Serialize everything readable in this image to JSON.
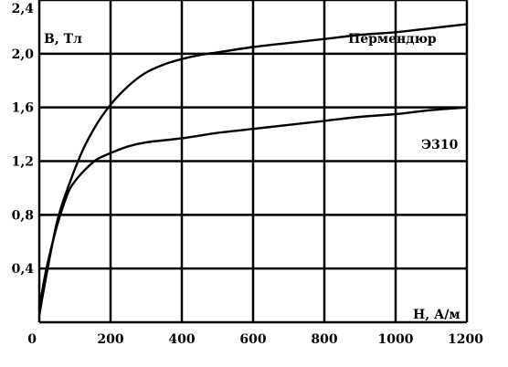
{
  "chart_data": {
    "type": "line",
    "title": "",
    "xlabel": "H, А/м",
    "ylabel": "B, Тл",
    "xlim": [
      0,
      1200
    ],
    "ylim": [
      0,
      2.4
    ],
    "x_ticks": [
      0,
      200,
      400,
      600,
      800,
      1000,
      1200
    ],
    "x_tick_labels": [
      "0",
      "200",
      "400",
      "600",
      "800",
      "1000",
      "1200"
    ],
    "y_ticks": [
      0.4,
      0.8,
      1.2,
      1.6,
      2.0,
      2.4
    ],
    "y_tick_labels": [
      "0,4",
      "0,8",
      "1,2",
      "1,6",
      "2,0",
      "2,4"
    ],
    "grid": true,
    "series": [
      {
        "name": "Пермендюр",
        "x": [
          0,
          20,
          50,
          80,
          120,
          160,
          200,
          250,
          300,
          350,
          400,
          450,
          500,
          600,
          700,
          800,
          900,
          1000,
          1100,
          1200
        ],
        "y": [
          0.05,
          0.35,
          0.75,
          1.0,
          1.27,
          1.47,
          1.62,
          1.76,
          1.86,
          1.92,
          1.96,
          1.99,
          2.01,
          2.05,
          2.08,
          2.11,
          2.14,
          2.16,
          2.19,
          2.22
        ]
      },
      {
        "name": "Э310",
        "x": [
          0,
          20,
          50,
          80,
          100,
          130,
          160,
          200,
          250,
          300,
          400,
          500,
          600,
          700,
          800,
          900,
          1000,
          1100,
          1200
        ],
        "y": [
          0.1,
          0.4,
          0.72,
          0.96,
          1.05,
          1.14,
          1.21,
          1.26,
          1.31,
          1.34,
          1.37,
          1.41,
          1.44,
          1.47,
          1.5,
          1.53,
          1.55,
          1.58,
          1.6
        ]
      }
    ]
  }
}
